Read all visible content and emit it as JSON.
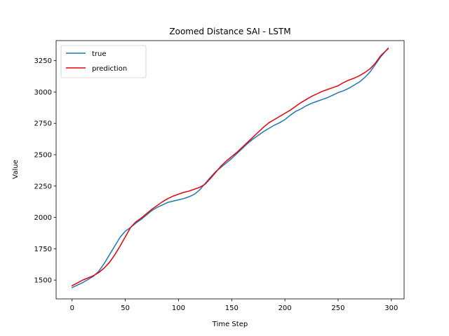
{
  "chart_data": {
    "type": "line",
    "title": "Zoomed Distance SAI - LSTM",
    "xlabel": "Time Step",
    "ylabel": "Value",
    "xlim": [
      -15,
      312
    ],
    "ylim": [
      1350,
      3410
    ],
    "xticks": [
      0,
      50,
      100,
      150,
      200,
      250,
      300
    ],
    "yticks": [
      1500,
      1750,
      2000,
      2250,
      2500,
      2750,
      3000,
      3250
    ],
    "grid": false,
    "legend_position": "top-left",
    "series": [
      {
        "name": "true",
        "color": "#1f77b4",
        "x": [
          0,
          10,
          20,
          25,
          30,
          35,
          40,
          45,
          50,
          55,
          60,
          65,
          70,
          75,
          80,
          85,
          90,
          95,
          100,
          105,
          110,
          115,
          120,
          125,
          130,
          135,
          140,
          145,
          150,
          155,
          160,
          165,
          170,
          175,
          180,
          185,
          190,
          195,
          200,
          205,
          210,
          215,
          220,
          225,
          230,
          235,
          240,
          245,
          250,
          255,
          260,
          265,
          270,
          275,
          280,
          285,
          290,
          297
        ],
        "y": [
          1440,
          1480,
          1530,
          1570,
          1630,
          1700,
          1770,
          1840,
          1890,
          1920,
          1955,
          1985,
          2020,
          2055,
          2080,
          2100,
          2120,
          2130,
          2140,
          2150,
          2165,
          2185,
          2220,
          2270,
          2320,
          2365,
          2400,
          2435,
          2470,
          2510,
          2550,
          2590,
          2625,
          2655,
          2685,
          2710,
          2735,
          2755,
          2780,
          2815,
          2845,
          2865,
          2890,
          2910,
          2925,
          2940,
          2955,
          2975,
          2995,
          3010,
          3030,
          3055,
          3080,
          3115,
          3160,
          3220,
          3280,
          3350
        ]
      },
      {
        "name": "prediction",
        "color": "#e8000b",
        "x": [
          0,
          10,
          20,
          25,
          30,
          35,
          40,
          45,
          50,
          55,
          60,
          65,
          70,
          75,
          80,
          85,
          90,
          95,
          100,
          105,
          110,
          115,
          120,
          125,
          130,
          135,
          140,
          145,
          150,
          155,
          160,
          165,
          170,
          175,
          180,
          185,
          190,
          195,
          200,
          205,
          210,
          215,
          220,
          225,
          230,
          235,
          240,
          245,
          250,
          255,
          260,
          265,
          270,
          275,
          280,
          285,
          290,
          297
        ],
        "y": [
          1455,
          1500,
          1535,
          1560,
          1595,
          1640,
          1700,
          1770,
          1845,
          1920,
          1965,
          1995,
          2030,
          2065,
          2095,
          2125,
          2150,
          2170,
          2185,
          2200,
          2210,
          2225,
          2240,
          2265,
          2310,
          2360,
          2410,
          2450,
          2485,
          2520,
          2560,
          2600,
          2640,
          2680,
          2720,
          2755,
          2780,
          2805,
          2830,
          2855,
          2885,
          2915,
          2940,
          2965,
          2985,
          3005,
          3020,
          3035,
          3050,
          3075,
          3095,
          3110,
          3130,
          3155,
          3185,
          3230,
          3290,
          3345
        ]
      }
    ]
  }
}
